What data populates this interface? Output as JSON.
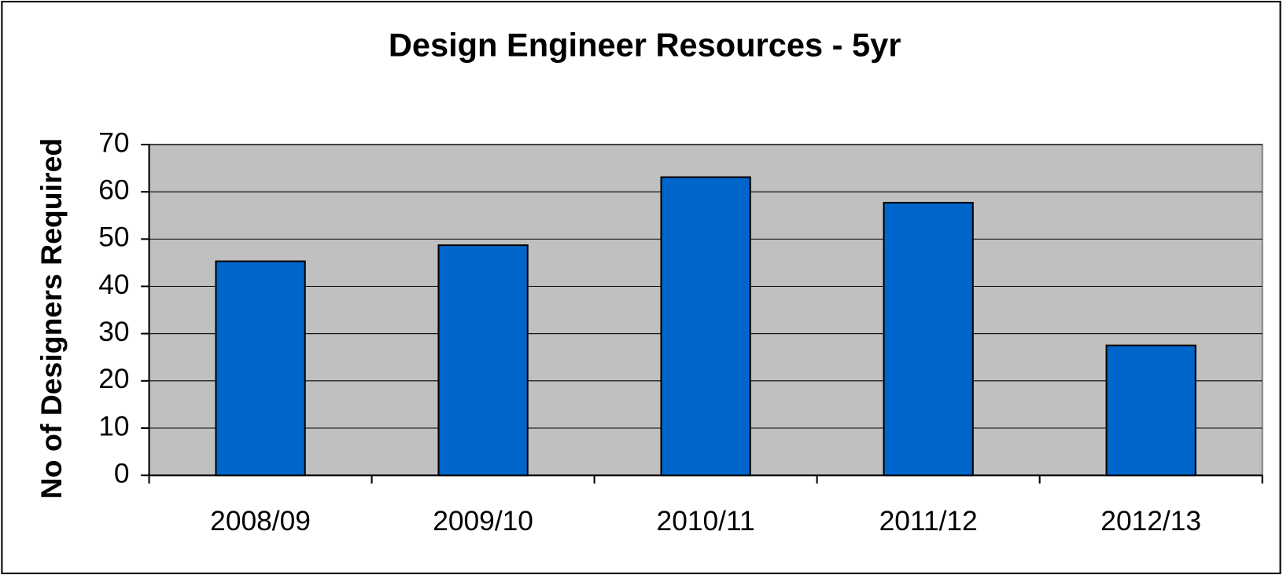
{
  "chart_data": {
    "type": "bar",
    "title": "Design Engineer Resources - 5yr",
    "y_label": "No of Designers Required",
    "categories": [
      "2008/09",
      "2009/10",
      "2010/11",
      "2011/12",
      "2012/13"
    ],
    "values": [
      45.3,
      48.7,
      63.1,
      57.7,
      27.5
    ],
    "color": "#0066cc",
    "ylim": [
      0,
      70
    ],
    "yticks": [
      0,
      10,
      20,
      30,
      40,
      50,
      60,
      70
    ],
    "grid": true
  }
}
